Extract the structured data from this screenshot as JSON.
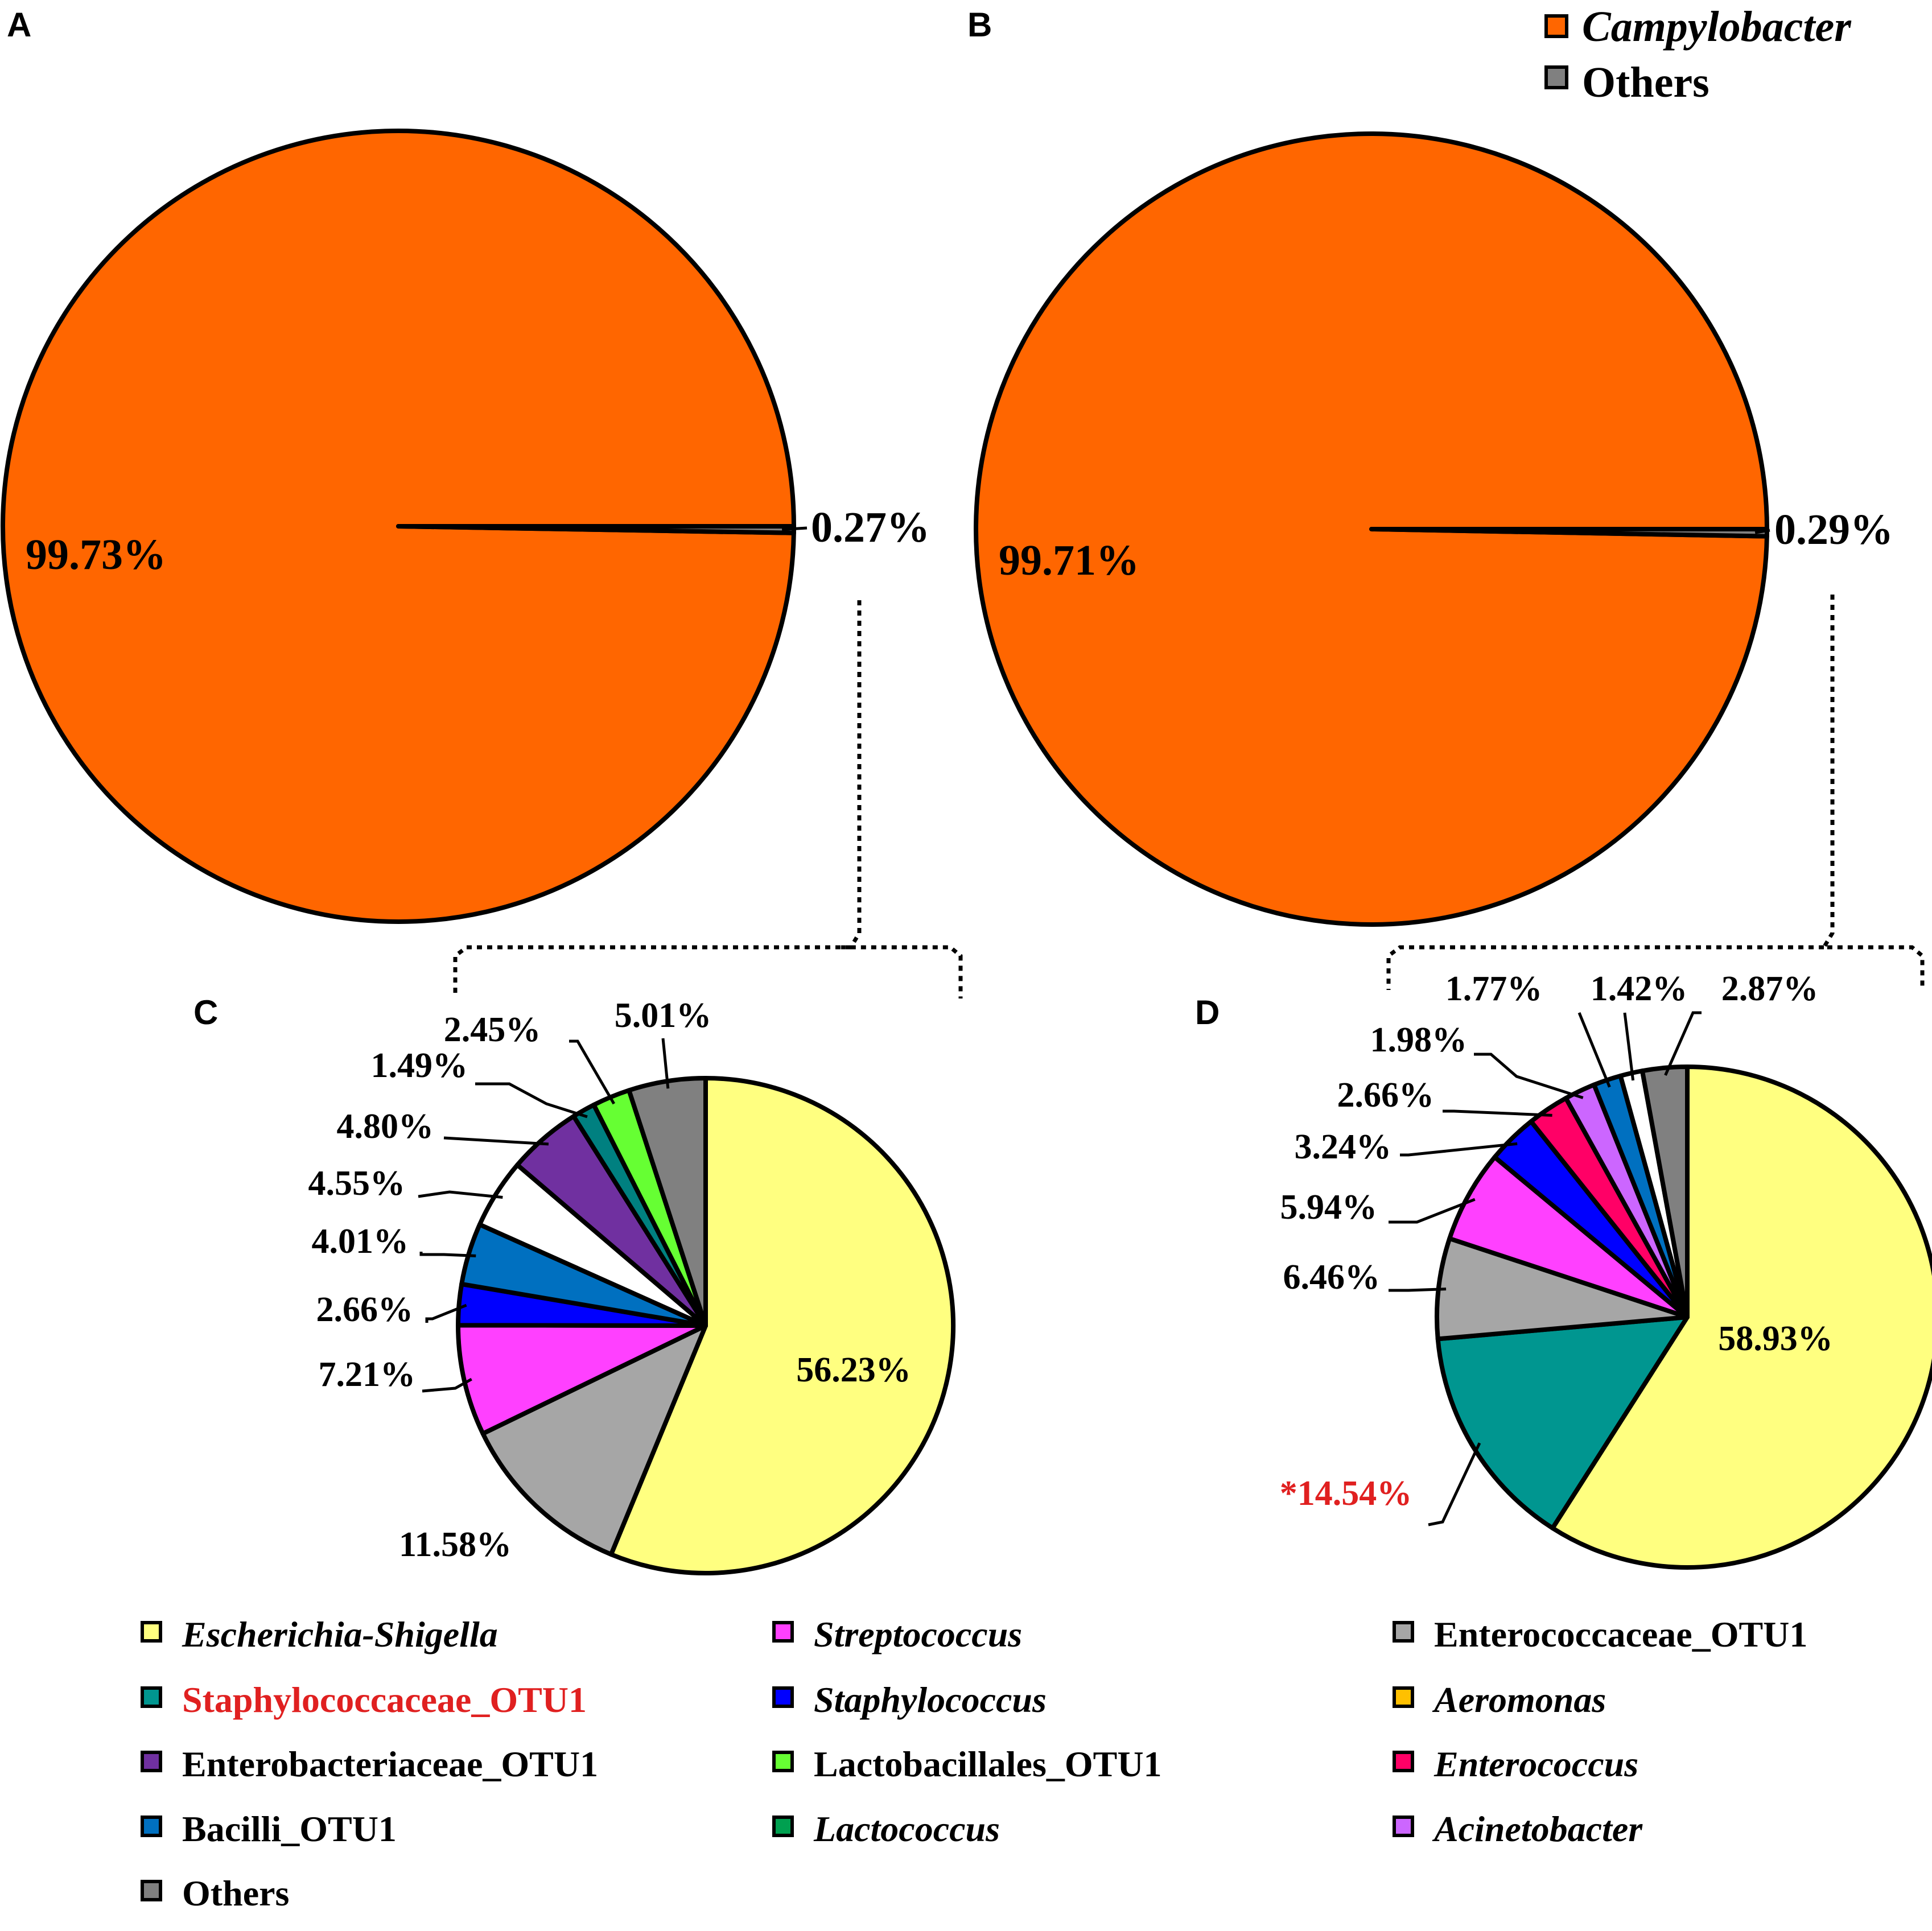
{
  "panels": {
    "A": "A",
    "B": "B",
    "C": "C",
    "D": "D"
  },
  "top_legend": [
    {
      "label": "Campylobacter",
      "italic": true,
      "color": "#ff6600"
    },
    {
      "label": "Others",
      "italic": false,
      "color": "#808080"
    }
  ],
  "bottom_legend": [
    {
      "label": "Escherichia-Shigella",
      "italic": true,
      "color": "#ffff80",
      "text_color": "#000000"
    },
    {
      "label": "Streptococcus",
      "italic": true,
      "color": "#ff40ff",
      "text_color": "#000000"
    },
    {
      "label": "Enterococcaceae_OTU1",
      "italic": false,
      "color": "#a6a6a6",
      "text_color": "#000000"
    },
    {
      "label": "Staphylococcaceae_OTU1",
      "italic": false,
      "color": "#009690",
      "text_color": "#e02020"
    },
    {
      "label": "Staphylococcus",
      "italic": true,
      "color": "#0000ff",
      "text_color": "#000000"
    },
    {
      "label": "Aeromonas",
      "italic": true,
      "color": "#ffc000",
      "text_color": "#000000"
    },
    {
      "label": "Enterobacteriaceae_OTU1",
      "italic": false,
      "color": "#7030a0",
      "text_color": "#000000"
    },
    {
      "label": "Lactobacillales_OTU1",
      "italic": false,
      "color": "#66ff33",
      "text_color": "#000000"
    },
    {
      "label": "Enterococcus",
      "italic": true,
      "color": "#ff0066",
      "text_color": "#000000"
    },
    {
      "label": "Bacilli_OTU1",
      "italic": false,
      "color": "#0070c0",
      "text_color": "#000000"
    },
    {
      "label": "Lactococcus",
      "italic": true,
      "color": "#00a050",
      "text_color": "#000000"
    },
    {
      "label": "Acinetobacter",
      "italic": true,
      "color": "#cc66ff",
      "text_color": "#000000"
    },
    {
      "label": "Others",
      "italic": false,
      "color": "#808080",
      "text_color": "#000000"
    }
  ],
  "chart_data": [
    {
      "panel": "A",
      "type": "pie",
      "slices": [
        {
          "name": "Campylobacter",
          "value": 99.73,
          "label": "99.73%",
          "color": "#ff6600"
        },
        {
          "name": "Others",
          "value": 0.27,
          "label": "0.27%",
          "color": "#808080"
        }
      ]
    },
    {
      "panel": "B",
      "type": "pie",
      "slices": [
        {
          "name": "Campylobacter",
          "value": 99.71,
          "label": "99.71%",
          "color": "#ff6600"
        },
        {
          "name": "Others",
          "value": 0.29,
          "label": "0.29%",
          "color": "#808080"
        }
      ]
    },
    {
      "panel": "C",
      "type": "pie",
      "slices": [
        {
          "name": "Escherichia-Shigella",
          "value": 56.23,
          "label": "56.23%",
          "color": "#ffff80"
        },
        {
          "name": "Enterococcaceae_OTU1",
          "value": 11.58,
          "label": "11.58%",
          "color": "#a6a6a6"
        },
        {
          "name": "Streptococcus",
          "value": 7.21,
          "label": "7.21%",
          "color": "#ff40ff"
        },
        {
          "name": "Staphylococcus",
          "value": 2.66,
          "label": "2.66%",
          "color": "#0000ff"
        },
        {
          "name": "Bacilli_OTU1",
          "value": 4.01,
          "label": "4.01%",
          "color": "#0070c0"
        },
        {
          "name": "Unlabeled (white)",
          "value": 4.55,
          "label": "4.55%",
          "color": "#ffffff"
        },
        {
          "name": "Enterobacteriaceae_OTU1",
          "value": 4.8,
          "label": "4.80%",
          "color": "#7030a0"
        },
        {
          "name": "Lactococcus",
          "value": 1.49,
          "label": "1.49%",
          "color": "#008080"
        },
        {
          "name": "Lactobacillales_OTU1",
          "value": 2.45,
          "label": "2.45%",
          "color": "#66ff33"
        },
        {
          "name": "Others",
          "value": 5.01,
          "label": "5.01%",
          "color": "#808080"
        }
      ]
    },
    {
      "panel": "D",
      "type": "pie",
      "slices": [
        {
          "name": "Escherichia-Shigella",
          "value": 58.93,
          "label": "58.93%",
          "color": "#ffff80"
        },
        {
          "name": "Staphylococcaceae_OTU1",
          "value": 14.54,
          "label": "*14.54%",
          "color": "#009690",
          "label_color": "#e02020"
        },
        {
          "name": "Enterococcaceae_OTU1",
          "value": 6.46,
          "label": "6.46%",
          "color": "#a6a6a6"
        },
        {
          "name": "Streptococcus",
          "value": 5.94,
          "label": "5.94%",
          "color": "#ff40ff"
        },
        {
          "name": "Staphylococcus",
          "value": 3.24,
          "label": "3.24%",
          "color": "#0000ff"
        },
        {
          "name": "Enterococcus",
          "value": 2.66,
          "label": "2.66%",
          "color": "#ff0066"
        },
        {
          "name": "Acinetobacter",
          "value": 1.98,
          "label": "1.98%",
          "color": "#cc66ff"
        },
        {
          "name": "Bacilli_OTU1",
          "value": 1.77,
          "label": "1.77%",
          "color": "#0070c0"
        },
        {
          "name": "Unlabeled (white)",
          "value": 1.42,
          "label": "1.42%",
          "color": "#ffffff"
        },
        {
          "name": "Others",
          "value": 2.87,
          "label": "2.87%",
          "color": "#808080"
        }
      ]
    }
  ]
}
